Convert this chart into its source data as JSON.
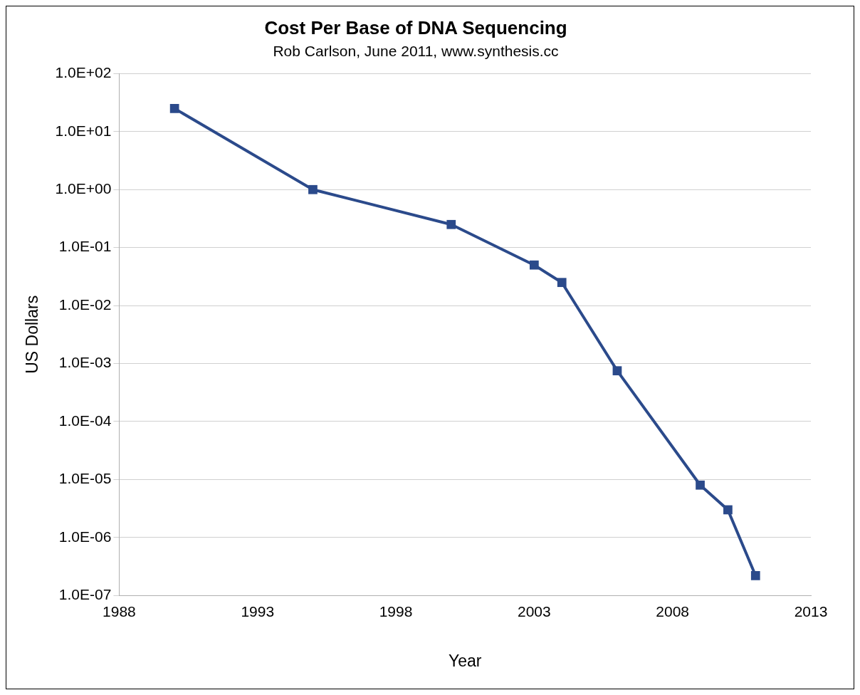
{
  "chart_data": {
    "type": "line",
    "title": "Cost Per Base of DNA Sequencing",
    "subtitle": "Rob Carlson, June 2011, www.synthesis.cc",
    "xlabel": "Year",
    "ylabel": "US Dollars",
    "x": [
      1990,
      1995,
      2000,
      2003,
      2004,
      2006,
      2009,
      2010,
      2011
    ],
    "series": [
      {
        "color": "#2b4a8b",
        "values": [
          25,
          1,
          0.25,
          0.05,
          0.025,
          0.00075,
          8e-06,
          3e-06,
          2.2e-07
        ]
      }
    ],
    "log": "y",
    "xlim": [
      1988,
      2013
    ],
    "xticks": [
      1988,
      1993,
      1998,
      2003,
      2008,
      2013
    ],
    "ylim": [
      1e-07,
      100
    ],
    "yticks": [
      {
        "value": 1e-07,
        "label": "1.0E-07"
      },
      {
        "value": 1e-06,
        "label": "1.0E-06"
      },
      {
        "value": 1e-05,
        "label": "1.0E-05"
      },
      {
        "value": 0.0001,
        "label": "1.0E-04"
      },
      {
        "value": 0.001,
        "label": "1.0E-03"
      },
      {
        "value": 0.01,
        "label": "1.0E-02"
      },
      {
        "value": 0.1,
        "label": "1.0E-01"
      },
      {
        "value": 1,
        "label": "1.0E+00"
      },
      {
        "value": 10,
        "label": "1.0E+01"
      },
      {
        "value": 100,
        "label": "1.0E+02"
      }
    ],
    "grid": "y",
    "legend": false,
    "marker": "square",
    "line_style": "solid"
  }
}
